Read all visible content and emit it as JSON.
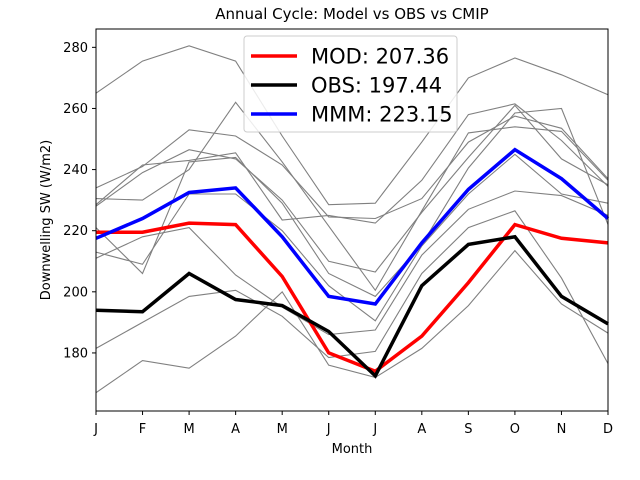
{
  "chart_data": {
    "type": "line",
    "title": "Annual Cycle: Model vs OBS vs CMIP",
    "xlabel": "Month",
    "ylabel": "Downwelling SW (W/m2)",
    "categories": [
      "J",
      "F",
      "M",
      "A",
      "M",
      "J",
      "J",
      "A",
      "S",
      "O",
      "N",
      "D"
    ],
    "ylim": [
      161,
      286
    ],
    "yticks": [
      180,
      200,
      220,
      240,
      260,
      280
    ],
    "grid": false,
    "legend_position": "top-center",
    "legend": [
      {
        "label": "MOD: 207.36",
        "color": "#ff0000"
      },
      {
        "label": "OBS: 197.44",
        "color": "#000000"
      },
      {
        "label": "MMM: 223.15",
        "color": "#0000ff"
      }
    ],
    "series": [
      {
        "name": "MOD",
        "color": "#ff0000",
        "width": 3.5,
        "values": [
          219.5,
          219.5,
          222.5,
          222,
          205,
          180,
          174,
          185.5,
          203,
          222,
          217.5,
          216
        ]
      },
      {
        "name": "OBS",
        "color": "#000000",
        "width": 3.5,
        "values": [
          194,
          193.5,
          206,
          197.5,
          195.5,
          187,
          172.5,
          202,
          215.5,
          218,
          198.5,
          189.5
        ]
      },
      {
        "name": "MMM",
        "color": "#0000ff",
        "width": 3.5,
        "values": [
          217.5,
          224,
          232.5,
          234,
          218,
          198.5,
          196,
          216,
          233.5,
          246.5,
          237,
          224
        ]
      }
    ],
    "cmip_members": {
      "color": "#808080",
      "width": 1.1,
      "series": [
        [
          265,
          275.5,
          280.5,
          275.5,
          251,
          228.5,
          229,
          249,
          270,
          276.5,
          271,
          264.5
        ],
        [
          234,
          241,
          253,
          251,
          241.5,
          224.5,
          224,
          230.5,
          249,
          257.5,
          253.5,
          237
        ],
        [
          228.5,
          241.5,
          243,
          245.5,
          223.5,
          225,
          222.5,
          236.5,
          258,
          261.5,
          249.5,
          234.5
        ],
        [
          230.5,
          230,
          240,
          262,
          242.5,
          221.5,
          200.5,
          226.5,
          252,
          254,
          252.5,
          236.5
        ],
        [
          228,
          239,
          246.5,
          243.5,
          230,
          210,
          206.5,
          226,
          244,
          261,
          243.5,
          235
        ],
        [
          221,
          206,
          242.5,
          244,
          229,
          206,
          198.5,
          215.5,
          240.5,
          258.5,
          260,
          222
        ],
        [
          213,
          209,
          232,
          232,
          220,
          202,
          190.5,
          215,
          232,
          245,
          232,
          229
        ],
        [
          211,
          218,
          221,
          205.5,
          195,
          186,
          187.5,
          212,
          227,
          233,
          231.5,
          225
        ],
        [
          181.5,
          190,
          198.5,
          200.5,
          192,
          178.5,
          180.5,
          206,
          221,
          226.5,
          204.5,
          176.5
        ],
        [
          167,
          177.5,
          175,
          185.5,
          200,
          176,
          172,
          181.5,
          195.5,
          213.5,
          196,
          186.5
        ]
      ]
    }
  }
}
